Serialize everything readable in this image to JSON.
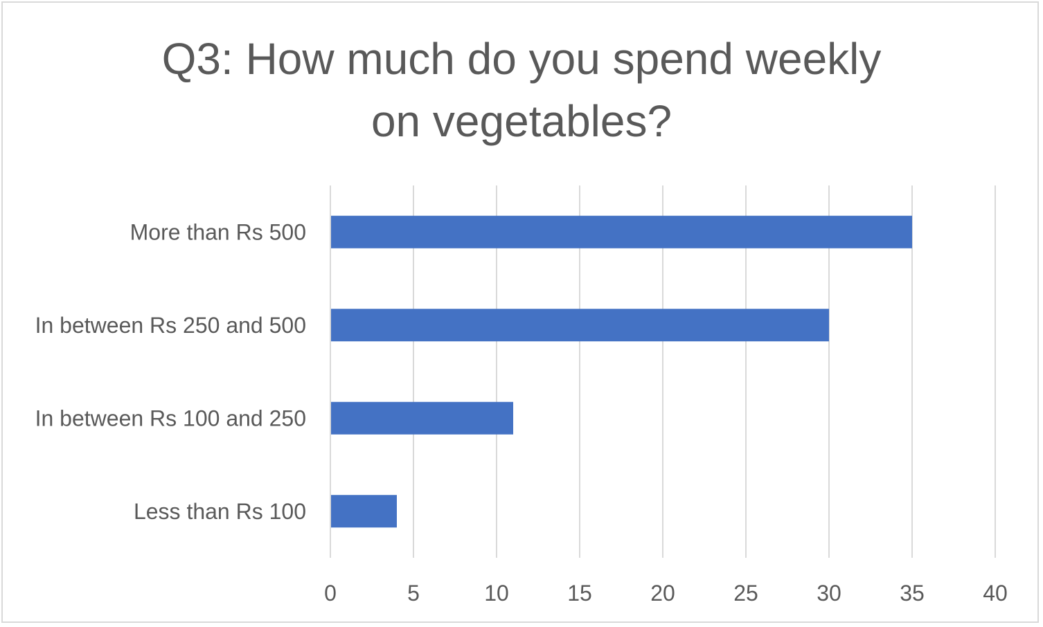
{
  "chart_data": {
    "type": "bar",
    "orientation": "horizontal",
    "title_lines": [
      "Q3: How much do you spend weekly",
      "on vegetables?"
    ],
    "categories": [
      "More than Rs 500",
      "In between Rs 250 and 500",
      "In between Rs 100 and 250",
      "Less than Rs 100"
    ],
    "values": [
      35,
      30,
      11,
      4
    ],
    "xlim": [
      0,
      40
    ],
    "x_ticks": [
      0,
      5,
      10,
      15,
      20,
      25,
      30,
      35,
      40
    ],
    "grid": "vertical",
    "legend": "none",
    "bar_color": "#4472c4",
    "grid_color": "#d9d9d9",
    "text_color": "#595959"
  }
}
